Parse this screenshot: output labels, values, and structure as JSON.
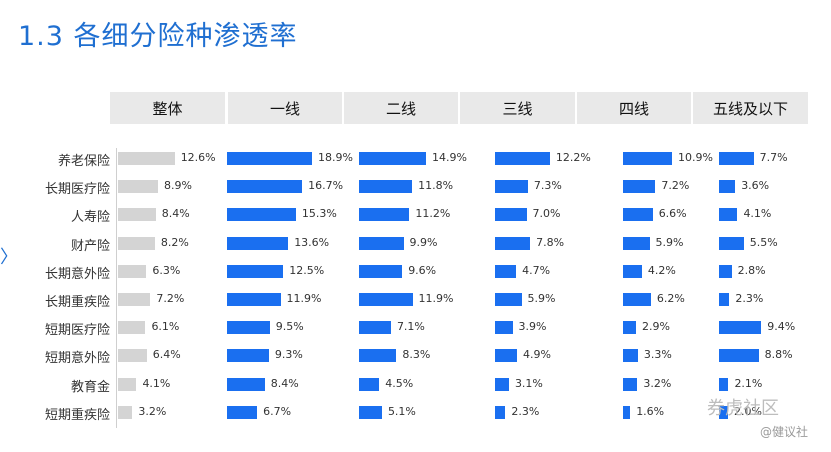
{
  "title": "1.3  各细分险种渗透率",
  "chart_data": {
    "type": "bar",
    "categories": [
      "养老保险",
      "长期医疗险",
      "人寿险",
      "财产险",
      "长期意外险",
      "长期重疾险",
      "短期医疗险",
      "短期意外险",
      "教育金",
      "短期重疾险"
    ],
    "series": [
      {
        "name": "整体",
        "values": [
          12.6,
          8.9,
          8.4,
          8.2,
          6.3,
          7.2,
          6.1,
          6.4,
          4.1,
          3.2
        ],
        "labels": [
          "12.6%",
          "8.9%",
          "8.4%",
          "8.2%",
          "6.3%",
          "7.2%",
          "6.1%",
          "6.4%",
          "4.1%",
          "3.2%"
        ]
      },
      {
        "name": "一线",
        "values": [
          18.9,
          16.7,
          15.3,
          13.6,
          12.5,
          11.9,
          9.5,
          9.3,
          8.4,
          6.7
        ],
        "labels": [
          "18.9%",
          "16.7%",
          "15.3%",
          "13.6%",
          "12.5%",
          "11.9%",
          "9.5%",
          "9.3%",
          "8.4%",
          "6.7%"
        ]
      },
      {
        "name": "二线",
        "values": [
          14.9,
          11.8,
          11.2,
          9.9,
          9.6,
          11.9,
          7.1,
          8.3,
          4.5,
          5.1
        ],
        "labels": [
          "14.9%",
          "11.8%",
          "11.2%",
          "9.9%",
          "9.6%",
          "11.9%",
          "7.1%",
          "8.3%",
          "4.5%",
          "5.1%"
        ]
      },
      {
        "name": "三线",
        "values": [
          12.2,
          7.3,
          7.0,
          7.8,
          4.7,
          5.9,
          3.9,
          4.9,
          3.1,
          2.3
        ],
        "labels": [
          "12.2%",
          "7.3%",
          "7.0%",
          "7.8%",
          "4.7%",
          "5.9%",
          "3.9%",
          "4.9%",
          "3.1%",
          "2.3%"
        ]
      },
      {
        "name": "四线",
        "values": [
          10.9,
          7.2,
          6.6,
          5.9,
          4.2,
          6.2,
          2.9,
          3.3,
          3.2,
          1.6
        ],
        "labels": [
          "10.9%",
          "7.2%",
          "6.6%",
          "5.9%",
          "4.2%",
          "6.2%",
          "2.9%",
          "3.3%",
          "3.2%",
          "1.6%"
        ]
      },
      {
        "name": "五线及以下",
        "values": [
          7.7,
          3.6,
          4.1,
          5.5,
          2.8,
          2.3,
          9.4,
          8.8,
          2.1,
          2.0
        ],
        "labels": [
          "7.7%",
          "3.6%",
          "4.1%",
          "5.5%",
          "2.8%",
          "2.3%",
          "9.4%",
          "8.8%",
          "2.1%",
          "2.0%"
        ]
      }
    ],
    "colors": {
      "overall": "#d4d4d4",
      "city": "#1a6ff0",
      "title": "#1f6fd1"
    }
  },
  "watermark": {
    "line1": "券虎社区",
    "line2": "@健议社"
  }
}
